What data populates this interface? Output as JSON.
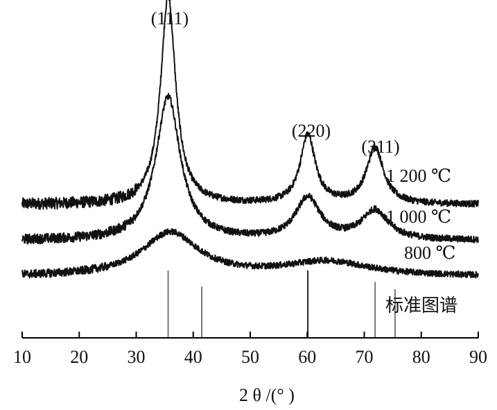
{
  "chart_data": {
    "type": "line",
    "title": "",
    "xlabel": "2 θ /(°  )",
    "ylabel": "",
    "xlim": [
      10,
      90
    ],
    "x_ticks": [
      "10",
      "20",
      "30",
      "40",
      "50",
      "60",
      "70",
      "80",
      "90"
    ],
    "grid": false,
    "peaks": [
      {
        "label": "(111)",
        "x": 35.6
      },
      {
        "label": "(220)",
        "x": 60.1
      },
      {
        "label": "(311)",
        "x": 71.9
      }
    ],
    "series": [
      {
        "name": "1 200 ℃",
        "baseline": 1.0,
        "peaks": [
          {
            "center": 35.6,
            "height": 1.0,
            "width": 1.6
          },
          {
            "center": 60.1,
            "height": 0.33,
            "width": 1.6
          },
          {
            "center": 71.9,
            "height": 0.27,
            "width": 1.8
          }
        ]
      },
      {
        "name": "1 000 ℃",
        "baseline": 0.0,
        "peaks": [
          {
            "center": 35.6,
            "height": 0.69,
            "width": 2.6
          },
          {
            "center": 60.1,
            "height": 0.2,
            "width": 2.6
          },
          {
            "center": 71.9,
            "height": 0.14,
            "width": 2.8
          }
        ]
      },
      {
        "name": "800 ℃",
        "baseline": -1.0,
        "peaks": [
          {
            "center": 36.0,
            "height": 0.21,
            "width": 6.0
          },
          {
            "center": 63.5,
            "height": 0.07,
            "width": 9.0
          }
        ]
      }
    ],
    "reference": {
      "label": "标准图谱",
      "lines": [
        {
          "x": 35.6,
          "intensity": 1.0
        },
        {
          "x": 41.5,
          "intensity": 0.76
        },
        {
          "x": 60.1,
          "intensity": 1.0
        },
        {
          "x": 71.9,
          "intensity": 0.83
        },
        {
          "x": 75.4,
          "intensity": 0.72
        }
      ]
    }
  }
}
